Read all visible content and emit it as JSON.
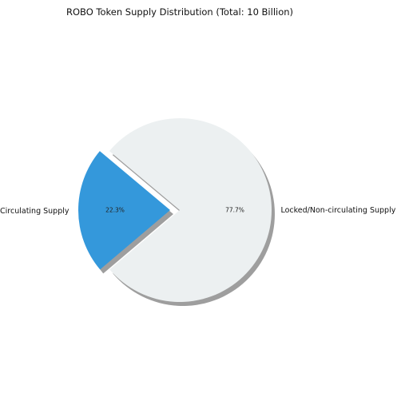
{
  "chart_data": {
    "type": "pie",
    "title": "ROBO Token Supply Distribution (Total: 10 Billion)",
    "categories": [
      "Circulating Supply",
      "Locked/Non-circulating Supply"
    ],
    "values": [
      22.3,
      77.7
    ],
    "value_labels": [
      "22.3%",
      "77.7%"
    ],
    "colors": [
      "#3498db",
      "#ecf0f1"
    ],
    "explode": [
      true,
      false
    ],
    "shadow": true,
    "legend": "none"
  }
}
